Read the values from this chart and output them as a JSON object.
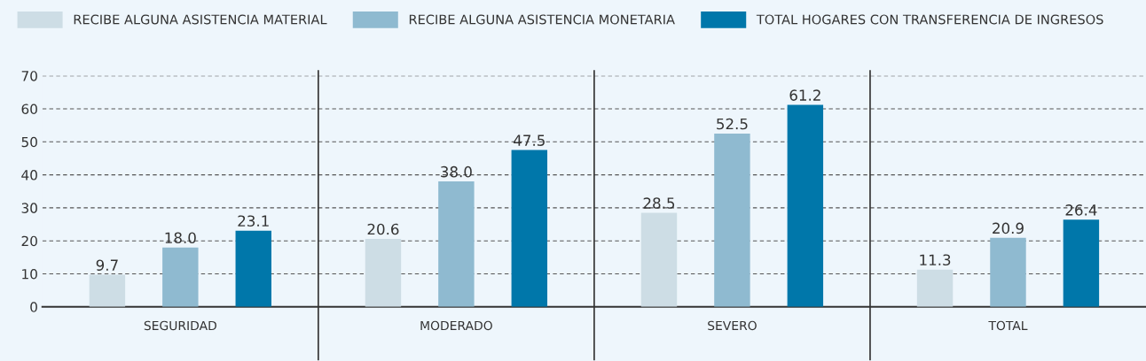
{
  "chart_data": {
    "type": "bar",
    "categories": [
      "SEGURIDAD",
      "MODERADO",
      "SEVERO",
      "TOTAL"
    ],
    "series": [
      {
        "name": "RECIBE ALGUNA ASISTENCIA MATERIAL",
        "color": "#cddde5",
        "values": [
          9.7,
          20.6,
          28.5,
          11.3
        ],
        "value_labels": [
          "9.7",
          "20.6",
          "28.5",
          "11.3"
        ]
      },
      {
        "name": "RECIBE ALGUNA ASISTENCIA MONETARIA",
        "color": "#8fbad0",
        "values": [
          18.0,
          38.0,
          52.5,
          20.9
        ],
        "value_labels": [
          "18.0",
          "38.0",
          "52.5",
          "20.9"
        ]
      },
      {
        "name": "TOTAL HOGARES CON TRANSFERENCIA DE INGRESOS",
        "color": "#0077aa",
        "values": [
          23.1,
          47.5,
          61.2,
          26.4
        ],
        "value_labels": [
          "23.1",
          "47.5",
          "61.2",
          "26.4"
        ]
      }
    ],
    "ylim": [
      0,
      70
    ],
    "yticks": [
      0,
      10,
      20,
      30,
      40,
      50,
      60,
      70
    ],
    "grid": "y",
    "legend": "top"
  }
}
